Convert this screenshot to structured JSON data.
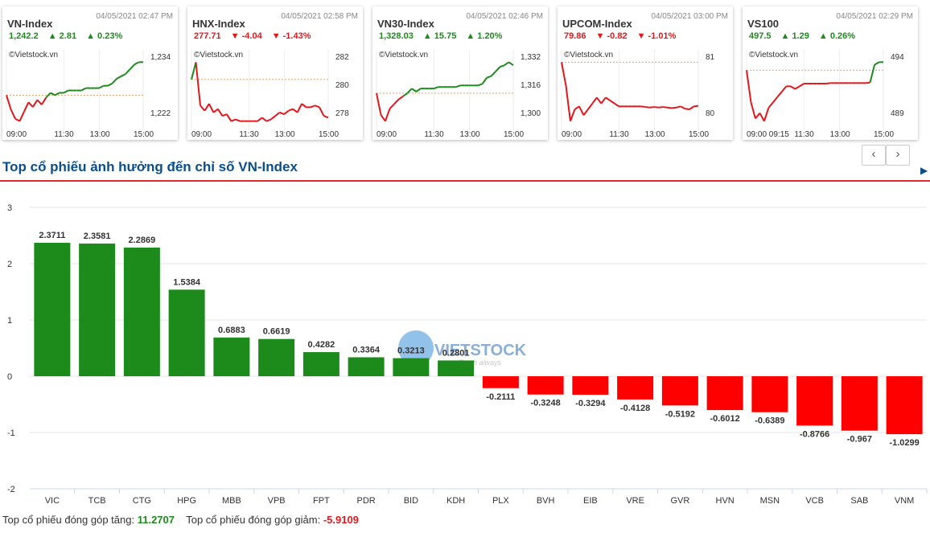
{
  "cards": [
    {
      "name": "VN-Index",
      "datetime": "04/05/2021 02:47 PM",
      "value": "1,242.2",
      "change": "2.81",
      "pct": "0.23%",
      "dir": "up",
      "source": "©Vietstock.vn",
      "yticks": [
        "1,234",
        "1,222"
      ],
      "xticks": [
        "09:00",
        "11:30",
        "13:00",
        "15:00"
      ],
      "series": [
        1228,
        1222,
        1218,
        1217,
        1221,
        1225,
        1223,
        1226,
        1224,
        1227,
        1229,
        1228,
        1229,
        1229,
        1230,
        1230,
        1230,
        1230,
        1231,
        1231,
        1231,
        1231,
        1232,
        1232,
        1233,
        1235,
        1236,
        1237,
        1239,
        1241,
        1242,
        1242
      ]
    },
    {
      "name": "HNX-Index",
      "datetime": "04/05/2021 02:58 PM",
      "value": "277.71",
      "change": "-4.04",
      "pct": "-1.43%",
      "dir": "down",
      "source": "©Vietstock.vn",
      "yticks": [
        "282",
        "280",
        "278"
      ],
      "xticks": [
        "09:00",
        "11:30",
        "13:00",
        "15:00"
      ],
      "series": [
        280,
        281,
        278.5,
        278.2,
        278.6,
        278.1,
        278.3,
        277.9,
        278.0,
        277.6,
        277.7,
        277.6,
        277.6,
        277.6,
        277.6,
        277.6,
        277.8,
        277.6,
        277.7,
        277.9,
        278.1,
        278.0,
        278.2,
        278.3,
        278.1,
        278.6,
        278.4,
        278.4,
        278.5,
        278.4,
        277.9,
        277.8
      ]
    },
    {
      "name": "VN30-Index",
      "datetime": "04/05/2021 02:46 PM",
      "value": "1,328.03",
      "change": "15.75",
      "pct": "1.20%",
      "dir": "up",
      "source": "©Vietstock.vn",
      "yticks": [
        "1,332",
        "1,316",
        "1,300"
      ],
      "xticks": [
        "09:00",
        "11:30",
        "13:00",
        "15:00"
      ],
      "series": [
        1310,
        1296,
        1292,
        1300,
        1303,
        1306,
        1308,
        1310,
        1313,
        1311,
        1313,
        1313,
        1313,
        1313,
        1314,
        1314,
        1314,
        1314,
        1314,
        1315,
        1315,
        1315,
        1315,
        1315,
        1316,
        1320,
        1321,
        1324,
        1327,
        1328,
        1330,
        1328
      ]
    },
    {
      "name": "UPCOM-Index",
      "datetime": "04/05/2021 03:00 PM",
      "value": "79.86",
      "change": "-0.82",
      "pct": "-1.01%",
      "dir": "down",
      "source": "©Vietstock.vn",
      "yticks": [
        "81",
        "80"
      ],
      "xticks": [
        "09:00",
        "11:30",
        "13:00",
        "15:00"
      ],
      "series": [
        80.6,
        80.2,
        79.6,
        79.8,
        79.85,
        79.7,
        79.8,
        79.9,
        80.0,
        79.9,
        80.0,
        79.95,
        79.9,
        79.85,
        79.85,
        79.85,
        79.85,
        79.85,
        79.85,
        79.84,
        79.83,
        79.84,
        79.83,
        79.84,
        79.83,
        79.82,
        79.83,
        79.85,
        79.81,
        79.8,
        79.85,
        79.86
      ]
    },
    {
      "name": "VS100",
      "datetime": "04/05/2021 02:29 PM",
      "value": "497.5",
      "change": "1.29",
      "pct": "0.26%",
      "dir": "up",
      "source": "©Vietstock.vn",
      "yticks": [
        "494",
        "489"
      ],
      "xticks": [
        "09:00 09:15",
        "11:30",
        "13:00",
        "15:00"
      ],
      "series": [
        496,
        490,
        487,
        488,
        486.5,
        489,
        490,
        491,
        492,
        493,
        493,
        492.5,
        493,
        493.5,
        493.5,
        493.5,
        493.5,
        493.5,
        493.5,
        493.6,
        493.6,
        493.6,
        493.6,
        493.6,
        493.6,
        493.6,
        493.6,
        493.6,
        493.7,
        497.0,
        497.5,
        497.5
      ]
    }
  ],
  "nav": {
    "prev": "‹",
    "next": "›"
  },
  "title": "Top cổ phiếu ảnh hưởng đến chỉ số VN-Index",
  "watermark": "VIETSTOCK",
  "watermark_sub": "Fresh always",
  "footer": {
    "pos_label": "Top cổ phiếu đóng góp tăng:",
    "pos_value": "11.2707",
    "neg_label": "Top cổ phiếu đóng góp giảm:",
    "neg_value": "-5.9109"
  },
  "colors": {
    "positive": "#1c8b1c",
    "negative": "#ff0000",
    "accent": "#e32b2b",
    "title": "#0b4e8c"
  },
  "chart_data": {
    "type": "bar",
    "title": "Top cổ phiếu ảnh hưởng đến chỉ số VN-Index",
    "categories": [
      "VIC",
      "TCB",
      "CTG",
      "HPG",
      "MBB",
      "VPB",
      "FPT",
      "PDR",
      "BID",
      "KDH",
      "PLX",
      "BVH",
      "EIB",
      "VRE",
      "GVR",
      "HVN",
      "MSN",
      "VCB",
      "SAB",
      "VNM"
    ],
    "values": [
      2.3711,
      2.3581,
      2.2869,
      1.5384,
      0.6883,
      0.6619,
      0.4282,
      0.3364,
      0.3213,
      0.2801,
      -0.2111,
      -0.3248,
      -0.3294,
      -0.4128,
      -0.5192,
      -0.6012,
      -0.6389,
      -0.8766,
      -0.967,
      -1.0299
    ],
    "labels": [
      "2.3711",
      "2.3581",
      "2.2869",
      "1.5384",
      "0.6883",
      "0.6619",
      "0.4282",
      "0.3364",
      "0.3213",
      "0.2801",
      "-0.2111",
      "-0.3248",
      "-0.3294",
      "-0.4128",
      "-0.5192",
      "-0.6012",
      "-0.6389",
      "-0.8766",
      "-0.967",
      "-1.0299"
    ],
    "ylim": [
      -2,
      3
    ],
    "yticks": [
      3,
      2,
      1,
      0,
      -1,
      -2
    ],
    "grid": true,
    "xlabel": "",
    "ylabel": ""
  }
}
